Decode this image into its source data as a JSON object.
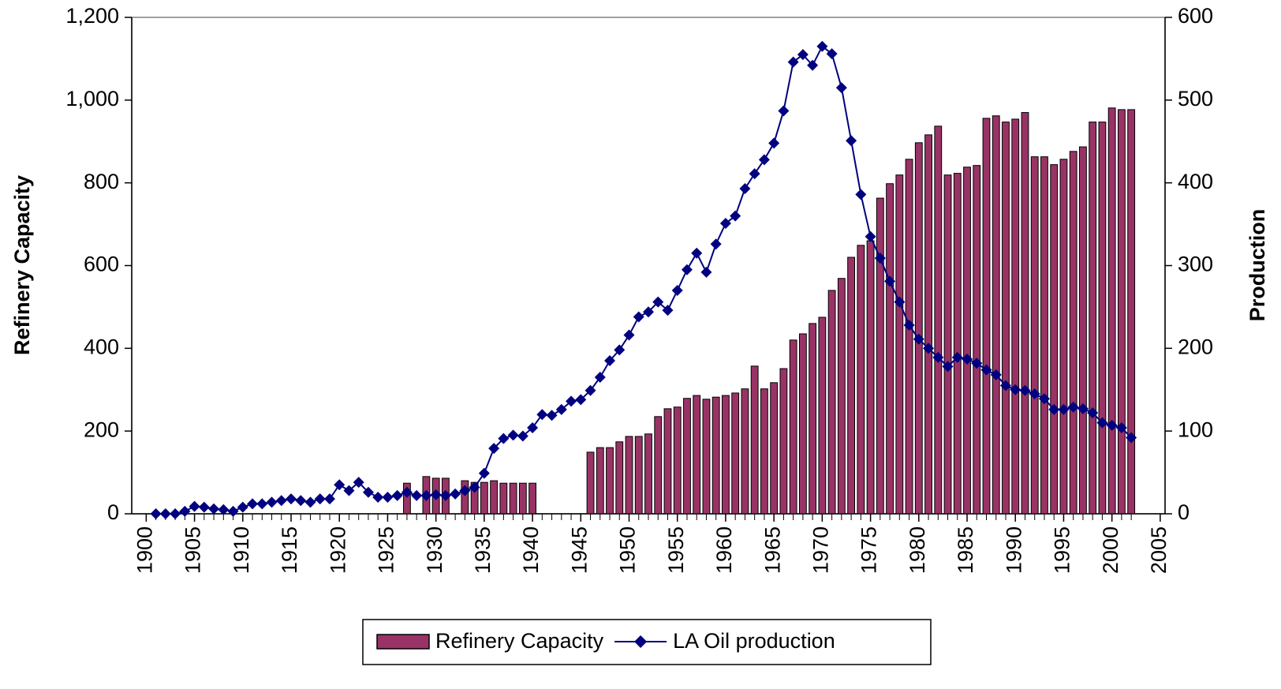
{
  "chart_data": {
    "type": "combo",
    "y_label": "Refinery Capacity",
    "y2_label": "Production",
    "x": [
      1901,
      1902,
      1903,
      1904,
      1905,
      1906,
      1907,
      1908,
      1909,
      1910,
      1911,
      1912,
      1913,
      1914,
      1915,
      1916,
      1917,
      1918,
      1919,
      1920,
      1921,
      1922,
      1923,
      1924,
      1925,
      1926,
      1927,
      1928,
      1929,
      1930,
      1931,
      1932,
      1933,
      1934,
      1935,
      1936,
      1937,
      1938,
      1939,
      1940,
      1941,
      1942,
      1943,
      1944,
      1945,
      1946,
      1947,
      1948,
      1949,
      1950,
      1951,
      1952,
      1953,
      1954,
      1955,
      1956,
      1957,
      1958,
      1959,
      1960,
      1961,
      1962,
      1963,
      1964,
      1965,
      1966,
      1967,
      1968,
      1969,
      1970,
      1971,
      1972,
      1973,
      1974,
      1975,
      1976,
      1977,
      1978,
      1979,
      1980,
      1981,
      1982,
      1983,
      1984,
      1985,
      1986,
      1987,
      1988,
      1989,
      1990,
      1991,
      1992,
      1993,
      1994,
      1995,
      1996,
      1997,
      1998,
      1999,
      2000,
      2001,
      2002
    ],
    "xlim": [
      1898.5,
      2005.5
    ],
    "xticks": [
      1900,
      1905,
      1910,
      1915,
      1920,
      1925,
      1930,
      1935,
      1940,
      1945,
      1950,
      1955,
      1960,
      1965,
      1970,
      1975,
      1980,
      1985,
      1990,
      1995,
      2000,
      2005
    ],
    "ylim": [
      0,
      1200
    ],
    "yticks": [
      0,
      200,
      400,
      600,
      800,
      {
        "value": 1000,
        "label": "1,000"
      },
      {
        "value": 1200,
        "label": "1,200"
      }
    ],
    "y2lim": [
      0,
      600
    ],
    "y2ticks": [
      0,
      100,
      200,
      300,
      400,
      500,
      600
    ],
    "legend": "bottom",
    "series": [
      {
        "name": "Refinery Capacity",
        "type": "bar",
        "color": "#993366",
        "values": [
          null,
          null,
          null,
          null,
          null,
          null,
          null,
          null,
          null,
          null,
          null,
          null,
          null,
          null,
          null,
          null,
          null,
          null,
          null,
          null,
          null,
          null,
          null,
          null,
          null,
          null,
          74,
          null,
          90,
          86,
          86,
          null,
          80,
          76,
          76,
          80,
          74,
          74,
          74,
          74,
          null,
          null,
          null,
          null,
          null,
          149,
          160,
          160,
          174,
          187,
          187,
          193,
          235,
          254,
          258,
          279,
          286,
          277,
          282,
          286,
          292,
          302,
          357,
          302,
          317,
          351,
          420,
          435,
          460,
          475,
          540,
          569,
          620,
          649,
          660,
          763,
          798,
          819,
          857,
          897,
          916,
          937,
          819,
          823,
          838,
          842,
          956,
          962,
          947,
          954,
          970,
          863,
          863,
          844,
          857,
          876,
          887,
          947,
          947,
          981,
          977,
          977
        ]
      },
      {
        "name": "LA Oil production",
        "type": "line",
        "axis": "y2",
        "color": "#000080",
        "values": [
          0,
          0,
          0,
          3,
          9,
          8,
          6,
          5,
          3,
          8,
          12,
          12,
          14,
          16,
          18,
          16,
          14,
          18,
          18,
          35,
          28,
          38,
          26,
          20,
          20,
          22,
          26,
          22,
          22,
          23,
          22,
          24,
          28,
          32,
          49,
          79,
          91,
          95,
          94,
          104,
          120,
          119,
          126,
          136,
          138,
          149,
          165,
          185,
          198,
          216,
          238,
          244,
          256,
          246,
          270,
          295,
          315,
          292,
          326,
          351,
          360,
          393,
          411,
          428,
          448,
          487,
          546,
          555,
          542,
          565,
          556,
          515,
          451,
          386,
          335,
          309,
          281,
          256,
          228,
          211,
          200,
          189,
          178,
          189,
          187,
          182,
          174,
          168,
          155,
          150,
          149,
          145,
          139,
          126,
          126,
          129,
          127,
          122,
          110,
          107,
          104,
          92
        ]
      }
    ]
  }
}
